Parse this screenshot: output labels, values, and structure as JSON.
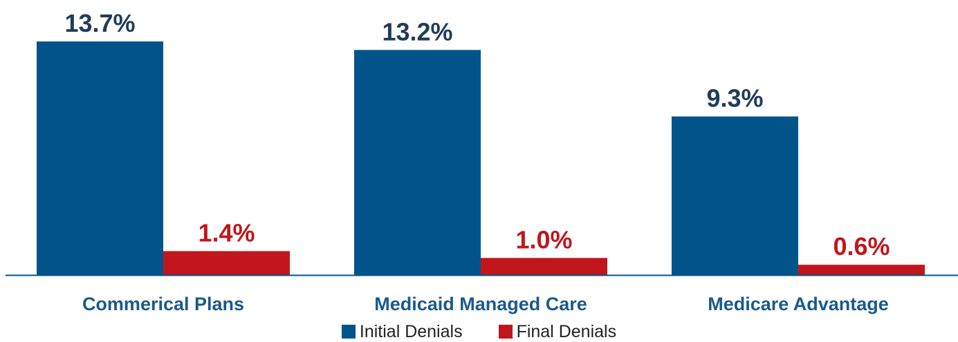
{
  "chart_data": {
    "type": "bar",
    "title": "",
    "xlabel": "",
    "ylabel": "",
    "categories": [
      "Commerical Plans",
      "Medicaid Managed Care",
      "Medicare Advantage"
    ],
    "series": [
      {
        "name": "Initial Denials",
        "values": [
          13.7,
          13.2,
          9.3
        ],
        "labels": [
          "13.7%",
          "13.2%",
          "9.3%"
        ],
        "color": "#00548a"
      },
      {
        "name": "Final Denials",
        "values": [
          1.4,
          1.0,
          0.6
        ],
        "labels": [
          "1.4%",
          "1.0%",
          "0.6%"
        ],
        "color": "#c0161c"
      }
    ],
    "ylim": [
      0,
      13.7
    ],
    "grid": false,
    "axis_color": "#00548a",
    "category_label_color": "#1a5a8c",
    "legend_position": "bottom"
  }
}
